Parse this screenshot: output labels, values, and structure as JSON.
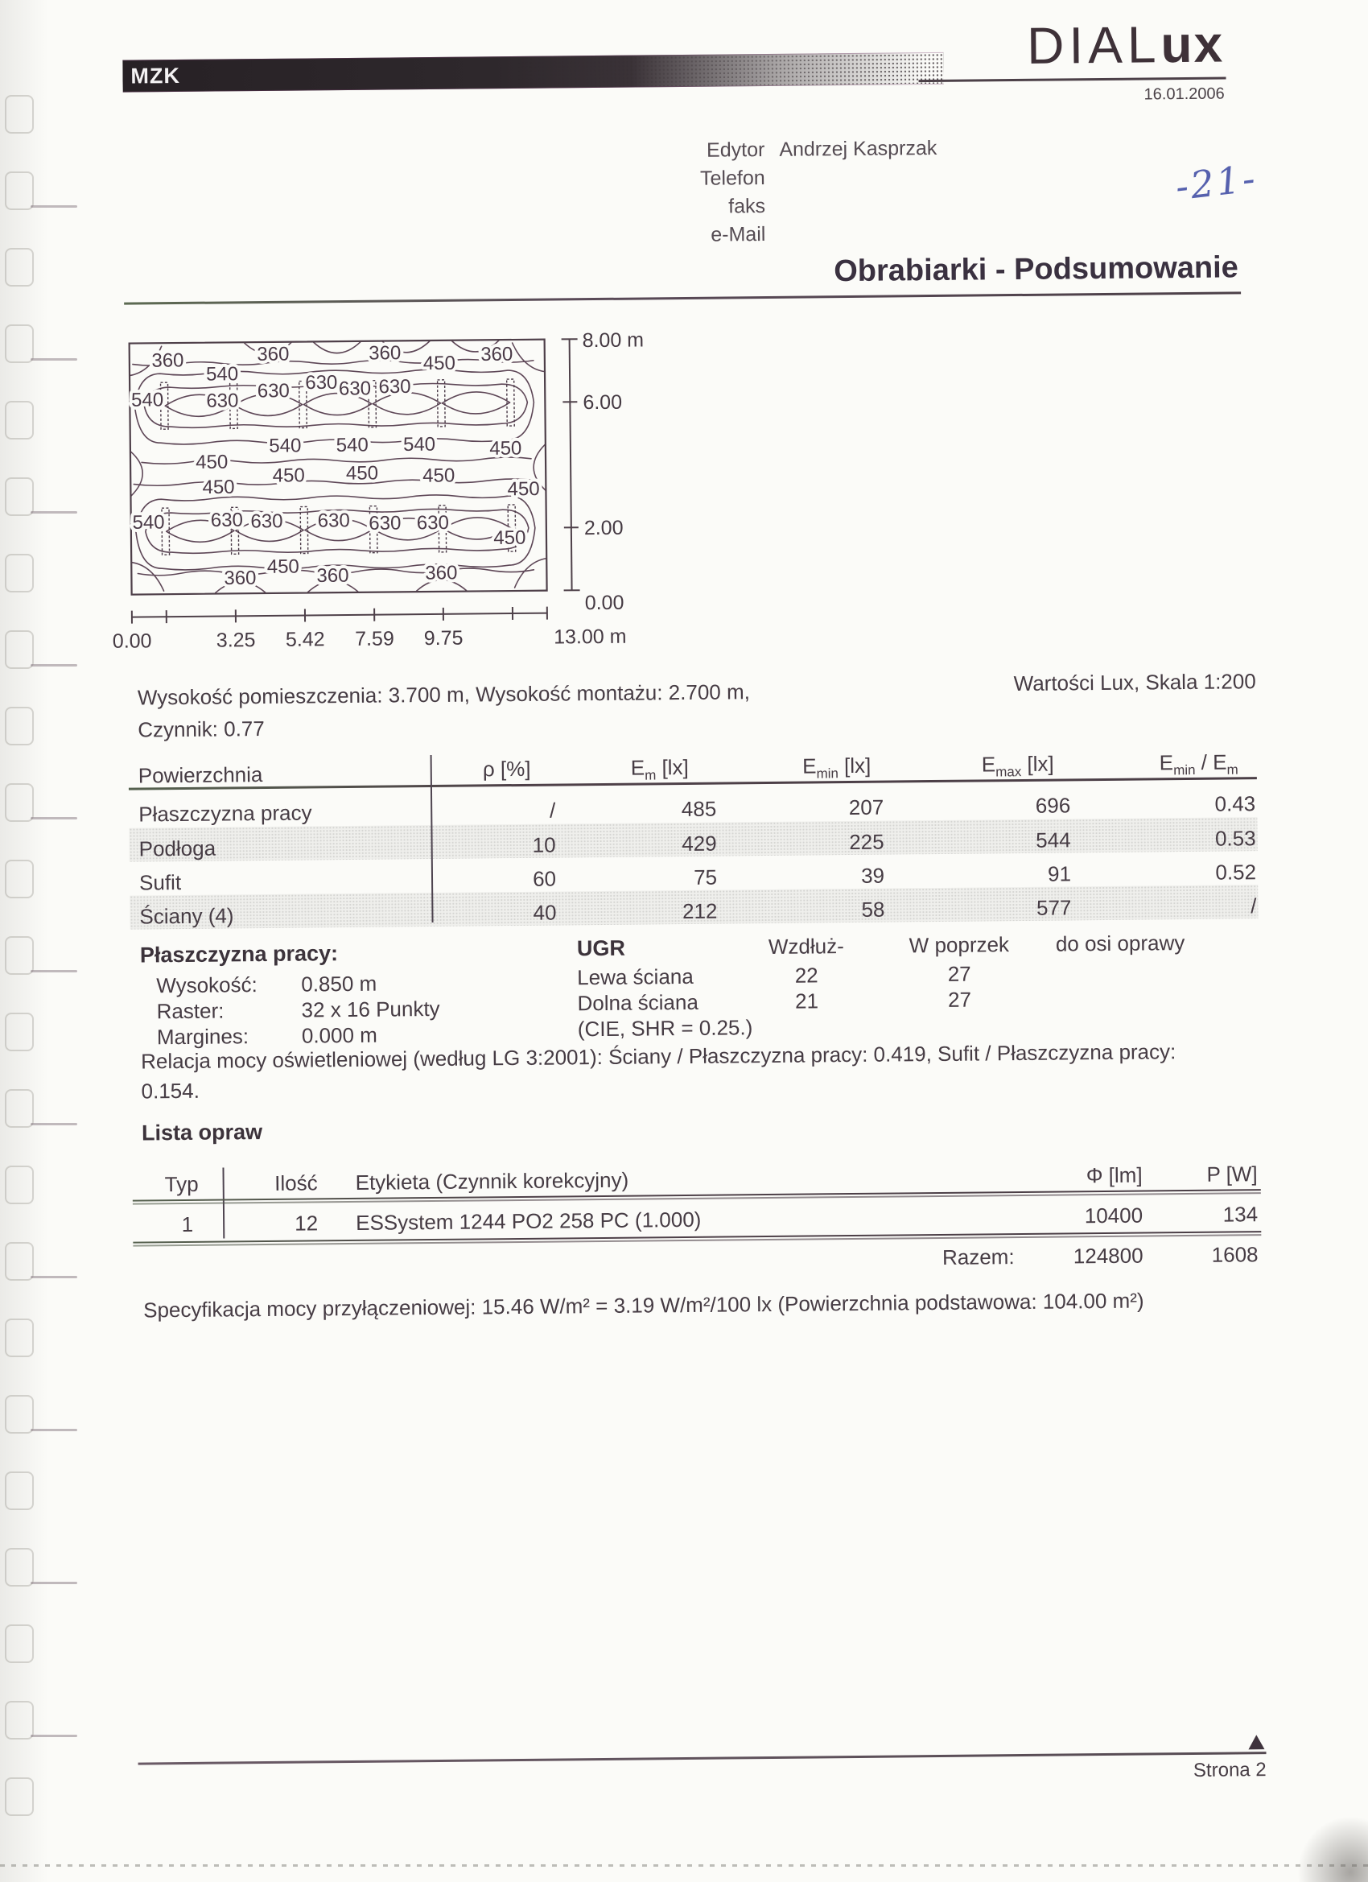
{
  "header": {
    "client": "MZK",
    "brand_thin": "DIAL",
    "brand_bold": "ux",
    "date": "16.01.2006",
    "handwritten_mark": "-21-",
    "contact_rows": [
      {
        "label": "Edytor",
        "value": "Andrzej Kasprzak"
      },
      {
        "label": "Telefon",
        "value": ""
      },
      {
        "label": "faks",
        "value": ""
      },
      {
        "label": "e-Mail",
        "value": ""
      }
    ]
  },
  "title": "Obrabiarki - Podsumowanie",
  "room_info": {
    "line1": "Wysokość pomieszczenia: 3.700 m, Wysokość montażu: 2.700 m,",
    "line2": "Czynnik: 0.77",
    "right_note": "Wartości Lux, Skala 1:200"
  },
  "surfaces_table": {
    "col0_header": "Powierzchnia",
    "headers": [
      {
        "pre": "ρ [%]",
        "sub": "",
        "post": "",
        "sub2": ""
      },
      {
        "pre": "E",
        "sub": "m",
        "post": " [lx]",
        "sub2": ""
      },
      {
        "pre": "E",
        "sub": "min",
        "post": " [lx]",
        "sub2": ""
      },
      {
        "pre": "E",
        "sub": "max",
        "post": " [lx]",
        "sub2": ""
      },
      {
        "pre": "E",
        "sub": "min",
        "post": " / E",
        "sub2": "m"
      }
    ],
    "rows": [
      [
        "Płaszczyzna pracy",
        "/",
        "485",
        "207",
        "696",
        "0.43"
      ],
      [
        "Podłoga",
        "10",
        "429",
        "225",
        "544",
        "0.53"
      ],
      [
        "Sufit",
        "60",
        "75",
        "39",
        "91",
        "0.52"
      ],
      [
        "Ściany (4)",
        "40",
        "212",
        "58",
        "577",
        "/"
      ]
    ]
  },
  "workplane": {
    "heading": "Płaszczyzna pracy:",
    "rows": [
      {
        "label": "Wysokość:",
        "value": "0.850 m"
      },
      {
        "label": "Raster:",
        "value": "32 x 16 Punkty"
      },
      {
        "label": "Margines:",
        "value": "0.000 m"
      }
    ]
  },
  "ugr": {
    "heading": "UGR",
    "col1": "Wzdłuż-",
    "col2": "W poprzek",
    "col3": "do osi oprawy",
    "rows": [
      {
        "label": "Lewa ściana",
        "v1": "22",
        "v2": "27"
      },
      {
        "label": "Dolna ściana",
        "v1": "21",
        "v2": "27"
      }
    ],
    "note": "(CIE, SHR = 0.25.)"
  },
  "relacja_line1": "Relacja mocy oświetleniowej (według LG 3:2001): Ściany / Płaszczyzna pracy: 0.419, Sufit / Płaszczyzna pracy:",
  "relacja_line2": "0.154.",
  "luminaires": {
    "heading": "Lista opraw",
    "headers": {
      "typ": "Typ",
      "ilosc": "Ilość",
      "etykieta": "Etykieta (Czynnik korekcyjny)",
      "flux": "Φ [lm]",
      "power": "P [W]"
    },
    "rows": [
      {
        "typ": "1",
        "ilosc": "12",
        "etykieta": "ESSystem 1244 PO2 258 PC (1.000)",
        "flux": "10400",
        "power": "134"
      }
    ],
    "total_label": "Razem:",
    "total_flux": "124800",
    "total_power": "1608"
  },
  "spec_line": "Specyfikacja mocy przyłączeniowej: 15.46 W/m² = 3.19 W/m²/100 lx (Powierzchnia podstawowa: 104.00 m²)",
  "footer": {
    "page_label": "Strona 2"
  },
  "chart_data": {
    "type": "contour",
    "title": "Isolux contour plot of the workplane (Wartości Lux, Skala 1:200)",
    "unit": "lx",
    "room": {
      "width_m": 13.0,
      "height_m": 8.0
    },
    "x_tick_labels": [
      "0.00",
      "3.25",
      "5.42",
      "7.59",
      "9.75"
    ],
    "x_tick_positions_m": [
      0,
      3.25,
      5.42,
      7.59,
      9.75
    ],
    "x_end_label": "13.00 m",
    "x_end_position_m": 13.0,
    "x_minor_tick_positions_m": [
      1.08,
      11.92
    ],
    "y_tick_labels": [
      "8.00 m",
      "6.00",
      "2.00",
      "0.00"
    ],
    "y_tick_positions_m": [
      8,
      6,
      2,
      0
    ],
    "levels": [
      360,
      450,
      540,
      630
    ],
    "luminaire_count": 12,
    "luminaire_columns_m": [
      1.08,
      3.25,
      5.42,
      7.59,
      9.75,
      11.92
    ],
    "luminaire_rows_m": [
      6.0,
      2.0
    ],
    "labels": [
      {
        "v": "360",
        "x": 1.2,
        "y": 7.45
      },
      {
        "v": "360",
        "x": 4.5,
        "y": 7.62
      },
      {
        "v": "360",
        "x": 8.0,
        "y": 7.62
      },
      {
        "v": "450",
        "x": 9.7,
        "y": 7.28
      },
      {
        "v": "360",
        "x": 11.5,
        "y": 7.55
      },
      {
        "v": "540",
        "x": 2.9,
        "y": 7.0
      },
      {
        "v": "540",
        "x": 0.55,
        "y": 6.2
      },
      {
        "v": "630",
        "x": 2.9,
        "y": 6.15
      },
      {
        "v": "630",
        "x": 4.5,
        "y": 6.45
      },
      {
        "v": "630",
        "x": 6.0,
        "y": 6.7
      },
      {
        "v": "630",
        "x": 7.05,
        "y": 6.5
      },
      {
        "v": "630",
        "x": 8.3,
        "y": 6.55
      },
      {
        "v": "540",
        "x": 4.85,
        "y": 4.7
      },
      {
        "v": "540",
        "x": 6.95,
        "y": 4.7
      },
      {
        "v": "540",
        "x": 9.05,
        "y": 4.7
      },
      {
        "v": "450",
        "x": 11.75,
        "y": 4.55
      },
      {
        "v": "450",
        "x": 2.55,
        "y": 4.2
      },
      {
        "v": "450",
        "x": 4.95,
        "y": 3.75
      },
      {
        "v": "450",
        "x": 7.25,
        "y": 3.8
      },
      {
        "v": "450",
        "x": 9.65,
        "y": 3.7
      },
      {
        "v": "450",
        "x": 12.3,
        "y": 3.25
      },
      {
        "v": "450",
        "x": 2.75,
        "y": 3.4
      },
      {
        "v": "630",
        "x": 3.0,
        "y": 2.35
      },
      {
        "v": "630",
        "x": 4.25,
        "y": 2.3
      },
      {
        "v": "630",
        "x": 6.35,
        "y": 2.3
      },
      {
        "v": "630",
        "x": 7.95,
        "y": 2.2
      },
      {
        "v": "630",
        "x": 9.45,
        "y": 2.2
      },
      {
        "v": "540",
        "x": 0.55,
        "y": 2.3
      },
      {
        "v": "450",
        "x": 11.85,
        "y": 1.7
      },
      {
        "v": "450",
        "x": 4.75,
        "y": 0.85
      },
      {
        "v": "360",
        "x": 3.4,
        "y": 0.5
      },
      {
        "v": "360",
        "x": 6.3,
        "y": 0.55
      },
      {
        "v": "360",
        "x": 9.7,
        "y": 0.6
      }
    ]
  }
}
